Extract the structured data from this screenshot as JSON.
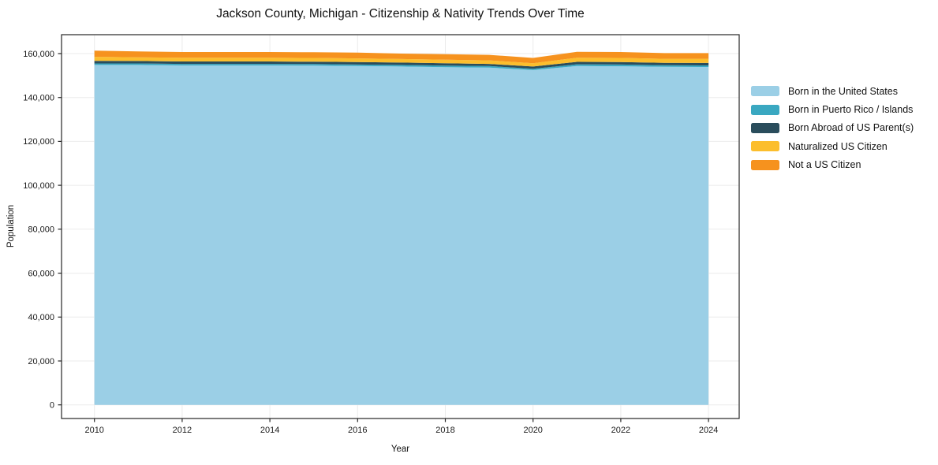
{
  "title": "Jackson County, Michigan - Citizenship & Nativity Trends Over Time",
  "colors": {
    "grid": "#ebebeb",
    "spine": "#262626",
    "text": "#1a1a1a",
    "background": "#ffffff"
  },
  "chart_data": {
    "type": "area",
    "stacked": true,
    "title": "Jackson County, Michigan - Citizenship & Nativity Trends Over Time",
    "xlabel": "Year",
    "ylabel": "Population",
    "grid": true,
    "legend_position": "center-right",
    "x": [
      2010,
      2011,
      2012,
      2013,
      2014,
      2015,
      2016,
      2017,
      2018,
      2019,
      2020,
      2021,
      2022,
      2023,
      2024
    ],
    "series": [
      {
        "name": "Born in the United States",
        "color": "#9BCFE6",
        "values": [
          154800,
          154800,
          154600,
          154600,
          154600,
          154500,
          154300,
          154100,
          153800,
          153600,
          152500,
          154300,
          154200,
          154000,
          153900
        ]
      },
      {
        "name": "Born in Puerto Rico / Islands",
        "color": "#3AA8C1",
        "values": [
          700,
          700,
          700,
          700,
          700,
          700,
          700,
          700,
          700,
          700,
          600,
          800,
          800,
          700,
          700
        ]
      },
      {
        "name": "Born Abroad of US Parent(s)",
        "color": "#2A4D5C",
        "values": [
          1200,
          1100,
          1100,
          1100,
          1100,
          1100,
          1100,
          1100,
          1100,
          1000,
          1000,
          1100,
          1100,
          1100,
          1100
        ]
      },
      {
        "name": "Naturalized US Citizen",
        "color": "#FCBE2D",
        "values": [
          1800,
          1700,
          1700,
          1700,
          1700,
          1700,
          1700,
          1600,
          1600,
          1600,
          1500,
          1900,
          1900,
          1800,
          1900
        ]
      },
      {
        "name": "Not a US Citizen",
        "color": "#F6921E",
        "values": [
          2800,
          2700,
          2600,
          2600,
          2600,
          2600,
          2600,
          2500,
          2500,
          2500,
          2400,
          2700,
          2700,
          2600,
          2600
        ]
      }
    ],
    "xticks": [
      2010,
      2012,
      2014,
      2016,
      2018,
      2020,
      2022,
      2024
    ],
    "yticks": [
      0,
      20000,
      40000,
      60000,
      80000,
      100000,
      120000,
      140000,
      160000
    ],
    "xlim": [
      2009.25,
      2024.7
    ],
    "ylim": [
      -6200,
      168600
    ]
  }
}
